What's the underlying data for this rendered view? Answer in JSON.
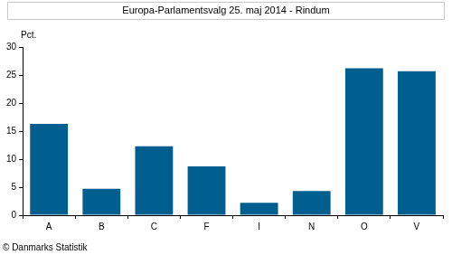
{
  "chart_data": {
    "type": "bar",
    "title": "Europa-Parlamentsvalg 25. maj 2014 - Rindum",
    "ylabel": "Pct.",
    "footer": "© Danmarks Statistik",
    "categories": [
      "A",
      "B",
      "C",
      "F",
      "I",
      "N",
      "O",
      "V"
    ],
    "values": [
      16.3,
      4.7,
      12.3,
      8.7,
      2.2,
      4.3,
      26.2,
      25.7
    ],
    "color": "#005f8f",
    "ylim": [
      0,
      30
    ],
    "yticks": [
      0,
      5,
      10,
      15,
      20,
      25,
      30
    ],
    "grid": false
  }
}
